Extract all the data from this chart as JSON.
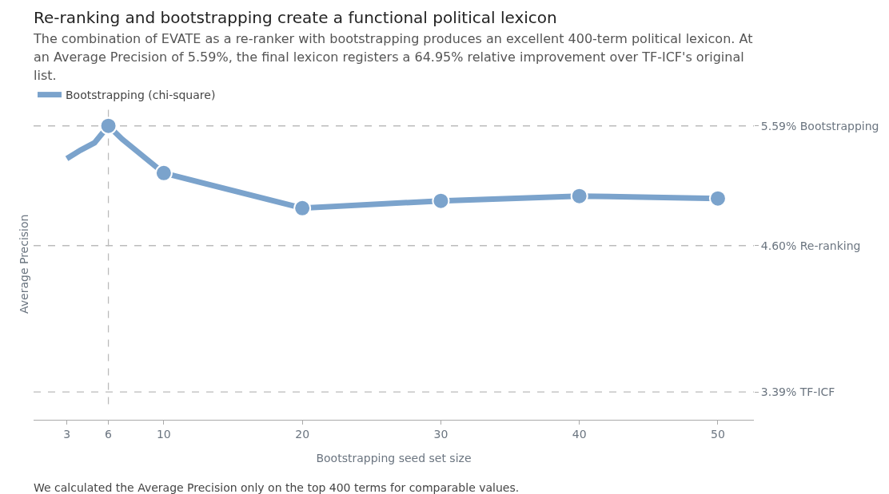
{
  "chart_data": {
    "type": "line",
    "title": "Re-ranking and bootstrapping create a functional political lexicon",
    "subtitle": "The combination of EVATE as a re-ranker with bootstrapping produces an excellent 400-term political lexicon. At an Average Precision of 5.59%, the final lexicon registers a 64.95% relative improvement over TF-ICF's original list.",
    "xlabel": "Bootstrapping seed set size",
    "ylabel": "Average Precision",
    "annotations": [
      "We calculated the Average Precision only on the top 400 terms for comparable values."
    ],
    "x": [
      3,
      4,
      5,
      6,
      7,
      10,
      20,
      30,
      40,
      50
    ],
    "series": [
      {
        "name": "Bootstrapping (chi-square)",
        "color": "#7ba3cc",
        "values": [
          5.32,
          5.39,
          5.45,
          5.59,
          5.48,
          5.2,
          4.91,
          4.97,
          5.01,
          4.99
        ],
        "marker": "none"
      },
      {
        "type": "scatter",
        "color": "#7ba3cc",
        "x": [
          6,
          10,
          20,
          30,
          40,
          50
        ],
        "values": [
          5.59,
          5.2,
          4.91,
          4.97,
          5.01,
          4.99
        ],
        "marker": "circle"
      }
    ],
    "xlim": [
      0.6,
      52.6
    ],
    "xticks": [
      3,
      6,
      10,
      20,
      30,
      40,
      50
    ],
    "ylim": [
      3.16,
      5.74
    ],
    "yticks": [
      {
        "value": 5.59,
        "label": "5.59% Bootstrapping"
      },
      {
        "value": 4.6,
        "label": "4.60% Re-ranking"
      },
      {
        "value": 3.39,
        "label": "3.39% TF-ICF"
      }
    ],
    "ref_lines": [
      {
        "axis": "y",
        "value": 5.59,
        "line_style": "dashed",
        "color": "#bbbbbb"
      },
      {
        "axis": "y",
        "value": 4.6,
        "line_style": "dashed",
        "color": "#bbbbbb"
      },
      {
        "axis": "y",
        "value": 3.39,
        "line_style": "dashed",
        "color": "#bbbbbb"
      },
      {
        "axis": "x",
        "value": 6,
        "line_style": "dashed",
        "color": "#bbbbbb"
      }
    ],
    "grid": false,
    "legend": "top left",
    "line_style": "solid"
  }
}
